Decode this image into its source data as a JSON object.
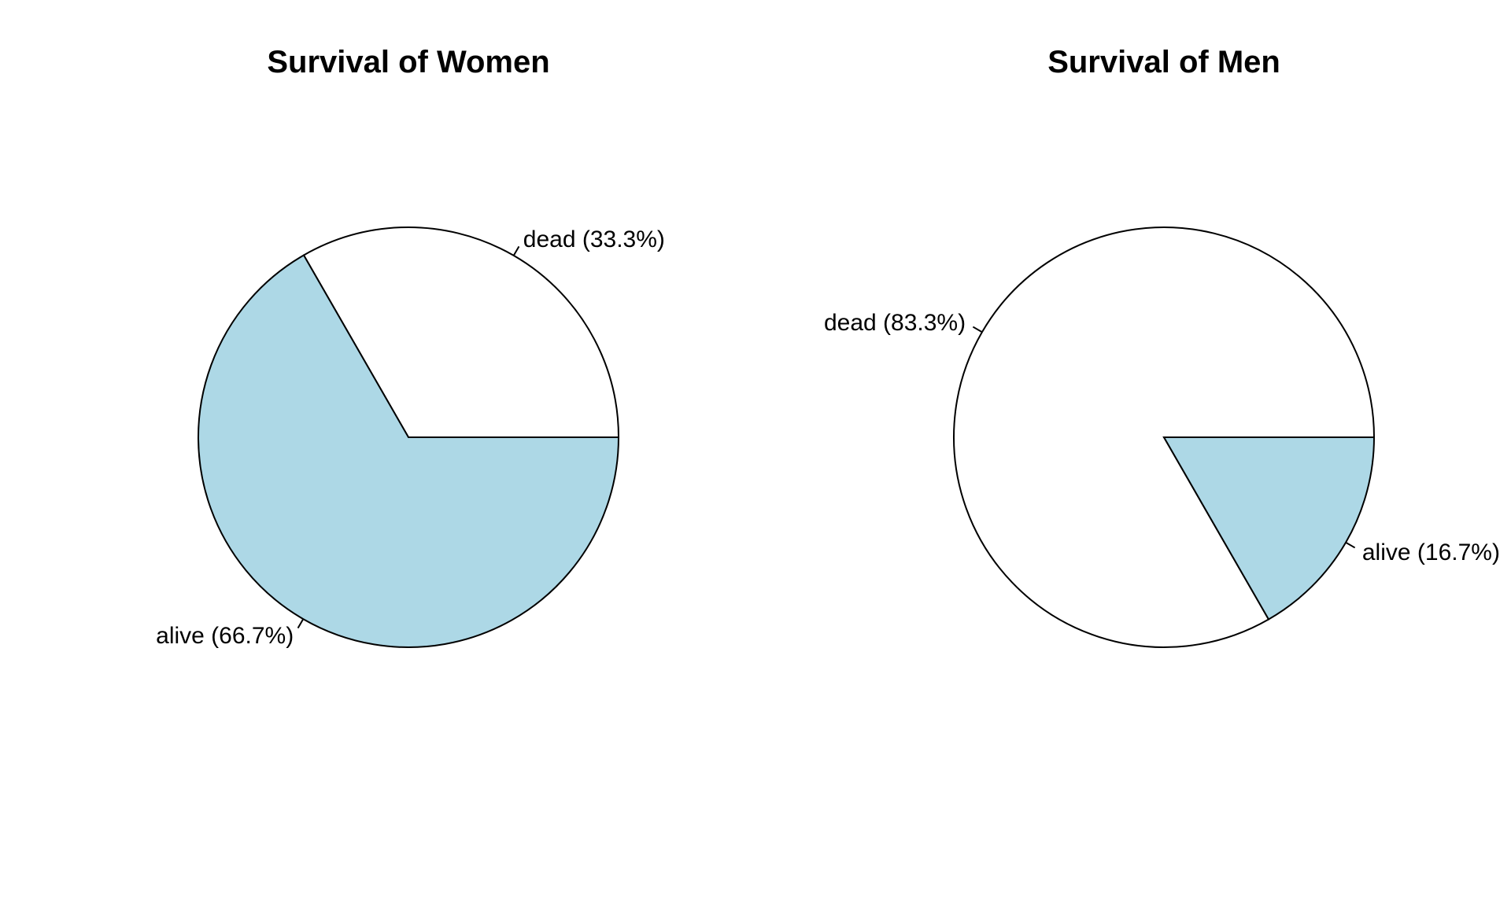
{
  "chart_data": [
    {
      "type": "pie",
      "title": "Survival of Women",
      "start_angle_deg": 0,
      "direction": "counterclockwise",
      "slices": [
        {
          "category": "dead",
          "value": 33.3,
          "label": "dead (33.3%)",
          "color": "#ffffff"
        },
        {
          "category": "alive",
          "value": 66.7,
          "label": "alive (66.7%)",
          "color": "#add8e6"
        }
      ]
    },
    {
      "type": "pie",
      "title": "Survival of Men",
      "start_angle_deg": 0,
      "direction": "counterclockwise",
      "slices": [
        {
          "category": "dead",
          "value": 83.3,
          "label": "dead (83.3%)",
          "color": "#ffffff"
        },
        {
          "category": "alive",
          "value": 16.7,
          "label": "alive (16.7%)",
          "color": "#add8e6"
        }
      ]
    }
  ]
}
